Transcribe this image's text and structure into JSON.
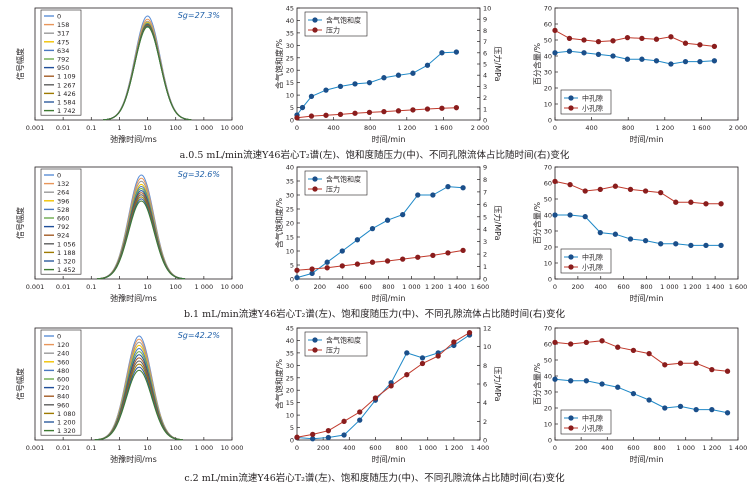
{
  "colors": {
    "saturation": "#1e88c7",
    "pressure": "#c0392b",
    "axis": "#231f20",
    "t2_curves": [
      "#5b8ed6",
      "#e8965a",
      "#9a9a9a",
      "#f2c200",
      "#4a78c0",
      "#6cab4c",
      "#1f4e9a",
      "#a35b25",
      "#5e5e5e",
      "#9e7a00",
      "#2c5a9c",
      "#3e7a32",
      "#7fa3dd"
    ]
  },
  "rows": [
    {
      "caption": "a.0.5 mL/min流速Y46岩心T₂谱(左)、饱和度随压力(中)、不同孔隙流体占比随时间(右)变化",
      "sg_label": "Sg=27.3%",
      "t2": {
        "type": "line",
        "xlabel": "弛豫时间/ms",
        "ylabel": "信号幅度",
        "xscale": "log",
        "xlim": [
          0.001,
          10000
        ],
        "xticks": [
          "0.001",
          "0.01",
          "0.1",
          "1",
          "10",
          "100",
          "1 000",
          "10 000"
        ],
        "legend": [
          "0",
          "158",
          "317",
          "475",
          "634",
          "792",
          "950",
          "1 109",
          "1 267",
          "1 426",
          "1 584",
          "1 742"
        ],
        "peak_ms": 10,
        "amplitudes": [
          1.0,
          0.97,
          0.95,
          0.94,
          0.93,
          0.925,
          0.92,
          0.915,
          0.91,
          0.905,
          0.9,
          0.895
        ]
      },
      "sat": {
        "type": "line",
        "xlabel": "时间/min",
        "ylabel_left": "含气饱和度/%",
        "ylabel_right": "压力/MPa",
        "xlim": [
          0,
          2000
        ],
        "xticks": [
          0,
          400,
          800,
          1200,
          1600,
          2000
        ],
        "ylim_left": [
          0,
          45
        ],
        "yticks_left": [
          0,
          5,
          10,
          15,
          20,
          25,
          30,
          35,
          40,
          45
        ],
        "ylim_right": [
          0,
          10
        ],
        "yticks_right": [
          0,
          1,
          2,
          3,
          4,
          5,
          6,
          7,
          8,
          9,
          10
        ],
        "legend": [
          "含气饱和度",
          "压力"
        ],
        "saturation": {
          "x": [
            0,
            60,
            158,
            317,
            475,
            634,
            792,
            950,
            1109,
            1267,
            1426,
            1584,
            1742
          ],
          "y": [
            2,
            5,
            9.5,
            12,
            13.5,
            14.5,
            15,
            17,
            18,
            18.8,
            22,
            27,
            27.3
          ]
        },
        "pressure": {
          "x": [
            0,
            158,
            317,
            475,
            634,
            792,
            950,
            1109,
            1267,
            1426,
            1584,
            1742
          ],
          "y": [
            0.2,
            0.35,
            0.42,
            0.5,
            0.6,
            0.68,
            0.75,
            0.82,
            0.9,
            0.98,
            1.05,
            1.1
          ]
        }
      },
      "pore": {
        "type": "line",
        "xlabel": "时间/min",
        "ylabel": "百分含量/%",
        "xlim": [
          0,
          2000
        ],
        "xticks": [
          "0",
          "400",
          "800",
          "1 200",
          "1 600",
          "2 000"
        ],
        "ylim": [
          0,
          70
        ],
        "yticks": [
          0,
          10,
          20,
          30,
          40,
          50,
          60,
          70
        ],
        "legend": [
          "中孔隙",
          "小孔隙"
        ],
        "medium": {
          "x": [
            0,
            158,
            317,
            475,
            634,
            792,
            950,
            1109,
            1267,
            1426,
            1584,
            1742
          ],
          "y": [
            42,
            43,
            42,
            41,
            40,
            38,
            38,
            37,
            35,
            36.5,
            36.5,
            37
          ]
        },
        "small": {
          "x": [
            0,
            158,
            317,
            475,
            634,
            792,
            950,
            1109,
            1267,
            1426,
            1584,
            1742
          ],
          "y": [
            56,
            51,
            50,
            49,
            49.5,
            51.5,
            51,
            50.5,
            52,
            48,
            47,
            46
          ]
        }
      }
    },
    {
      "caption": "b.1 mL/min流速Y46岩心T₂谱(左)、饱和度随压力(中)、不同孔隙流体占比随时间(右)变化",
      "sg_label": "Sg=32.6%",
      "t2": {
        "type": "line",
        "xlabel": "弛豫时间/ms",
        "ylabel": "信号幅度",
        "xscale": "log",
        "xlim": [
          0.001,
          10000
        ],
        "xticks": [
          "0.001",
          "0.01",
          "0.1",
          "1",
          "10",
          "100",
          "1 000",
          "10 000"
        ],
        "legend": [
          "0",
          "132",
          "264",
          "396",
          "528",
          "660",
          "792",
          "924",
          "1 056",
          "1 188",
          "1 320",
          "1 452"
        ],
        "peak_ms": 6,
        "amplitudes": [
          1.0,
          0.97,
          0.94,
          0.91,
          0.89,
          0.87,
          0.85,
          0.83,
          0.81,
          0.79,
          0.77,
          0.75
        ]
      },
      "sat": {
        "type": "line",
        "xlabel": "时间/min",
        "ylabel_left": "含气饱和度/%",
        "ylabel_right": "压力/MPa",
        "xlim": [
          0,
          1600
        ],
        "xticks": [
          0,
          200,
          400,
          600,
          800,
          1000,
          1200,
          1400,
          1600
        ],
        "ylim_left": [
          0,
          40
        ],
        "yticks_left": [
          0,
          5,
          10,
          15,
          20,
          25,
          30,
          35,
          40
        ],
        "ylim_right": [
          0,
          9
        ],
        "yticks_right": [
          0,
          1,
          2,
          3,
          4,
          5,
          6,
          7,
          8,
          9
        ],
        "legend": [
          "含气饱和度",
          "压力"
        ],
        "saturation": {
          "x": [
            0,
            132,
            264,
            396,
            528,
            660,
            792,
            924,
            1056,
            1188,
            1320,
            1452
          ],
          "y": [
            0.5,
            2,
            6,
            10,
            14,
            18,
            21,
            23,
            30,
            30,
            33,
            32.6
          ]
        },
        "pressure": {
          "x": [
            0,
            132,
            264,
            396,
            528,
            660,
            792,
            924,
            1056,
            1188,
            1320,
            1452
          ],
          "y": [
            0.7,
            0.8,
            0.9,
            1.05,
            1.2,
            1.35,
            1.45,
            1.6,
            1.75,
            1.9,
            2.1,
            2.3
          ]
        }
      },
      "pore": {
        "type": "line",
        "xlabel": "时间/min",
        "ylabel": "百分含量/%",
        "xlim": [
          0,
          1600
        ],
        "xticks": [
          "0",
          "200",
          "400",
          "600",
          "800",
          "1 000",
          "1 200",
          "1 400",
          "1 600"
        ],
        "ylim": [
          0,
          70
        ],
        "yticks": [
          0,
          10,
          20,
          30,
          40,
          50,
          60,
          70
        ],
        "legend": [
          "中孔隙",
          "小孔隙"
        ],
        "medium": {
          "x": [
            0,
            132,
            264,
            396,
            528,
            660,
            792,
            924,
            1056,
            1188,
            1320,
            1452
          ],
          "y": [
            40,
            40,
            39,
            29,
            28,
            25,
            24,
            22,
            22,
            21,
            21,
            21
          ]
        },
        "small": {
          "x": [
            0,
            132,
            264,
            396,
            528,
            660,
            792,
            924,
            1056,
            1188,
            1320,
            1452
          ],
          "y": [
            61,
            59,
            55,
            56,
            58,
            56,
            55,
            54,
            48,
            48,
            47,
            47
          ]
        }
      }
    },
    {
      "caption": "c.2 mL/min流速Y46岩心T₂谱(左)、饱和度随压力(中)、不同孔隙流体占比随时间(右)变化",
      "sg_label": "Sg=42.2%",
      "t2": {
        "type": "line",
        "xlabel": "弛豫时间/ms",
        "ylabel": "信号幅度",
        "xscale": "log",
        "xlim": [
          0.001,
          10000
        ],
        "xticks": [
          "0.001",
          "0.01",
          "0.1",
          "1",
          "10",
          "100",
          "1 000",
          "10 000"
        ],
        "legend": [
          "0",
          "120",
          "240",
          "360",
          "480",
          "600",
          "720",
          "840",
          "960",
          "1 080",
          "1 200",
          "1 320"
        ],
        "peak_ms": 5,
        "amplitudes": [
          1.0,
          0.97,
          0.94,
          0.91,
          0.88,
          0.85,
          0.82,
          0.79,
          0.76,
          0.73,
          0.7,
          0.67
        ]
      },
      "sat": {
        "type": "line",
        "xlabel": "时间/min",
        "ylabel_left": "含气饱和度/%",
        "ylabel_right": "压力/MPa",
        "xlim": [
          0,
          1400
        ],
        "xticks": [
          0,
          200,
          400,
          600,
          800,
          1000,
          1200,
          1400
        ],
        "ylim_left": [
          0,
          45
        ],
        "yticks_left": [
          0,
          5,
          10,
          15,
          20,
          25,
          30,
          35,
          40,
          45
        ],
        "ylim_right": [
          0,
          12
        ],
        "yticks_right": [
          0,
          2,
          4,
          6,
          8,
          10,
          12
        ],
        "legend": [
          "含气饱和度",
          "压力"
        ],
        "saturation": {
          "x": [
            0,
            120,
            240,
            360,
            480,
            600,
            720,
            840,
            960,
            1080,
            1200,
            1320
          ],
          "y": [
            1,
            0.5,
            1,
            2,
            8,
            16,
            23,
            35,
            33,
            35,
            38,
            42.2
          ]
        },
        "pressure": {
          "x": [
            0,
            120,
            240,
            360,
            480,
            600,
            720,
            840,
            960,
            1080,
            1200,
            1320
          ],
          "y": [
            0.3,
            0.6,
            1,
            2,
            3,
            4.5,
            5.8,
            7,
            8.2,
            9,
            10.5,
            11.5
          ]
        }
      },
      "pore": {
        "type": "line",
        "xlabel": "时间/min",
        "ylabel": "百分含量/%",
        "xlim": [
          0,
          1400
        ],
        "xticks": [
          "0",
          "200",
          "400",
          "600",
          "800",
          "1 000",
          "1 200",
          "1 400"
        ],
        "ylim": [
          0,
          70
        ],
        "yticks": [
          0,
          10,
          20,
          30,
          40,
          50,
          60,
          70
        ],
        "legend": [
          "中孔隙",
          "小孔隙"
        ],
        "medium": {
          "x": [
            0,
            120,
            240,
            360,
            480,
            600,
            720,
            840,
            960,
            1080,
            1200,
            1320
          ],
          "y": [
            38,
            37,
            37,
            35,
            33,
            29,
            25,
            20,
            21,
            19,
            19,
            17
          ]
        },
        "small": {
          "x": [
            0,
            120,
            240,
            360,
            480,
            600,
            720,
            840,
            960,
            1080,
            1200,
            1320
          ],
          "y": [
            61,
            60,
            61,
            62,
            58,
            56,
            54,
            47,
            48,
            48,
            44,
            43
          ]
        }
      }
    }
  ]
}
